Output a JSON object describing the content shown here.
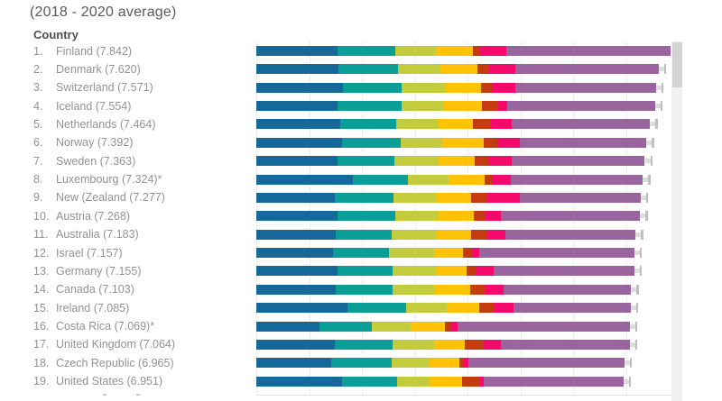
{
  "header": {
    "subtitle": "(2018 - 2020 average)"
  },
  "list": {
    "heading": "Country"
  },
  "colors": {
    "blue": "#16679a",
    "teal": "#0a9e96",
    "olive": "#c3cc3c",
    "yellow": "#fec306",
    "dark_red": "#c43b10",
    "pink": "#f5096b",
    "purple": "#9a659f",
    "whisker": "#bfbfbf",
    "gridline": "#ededed",
    "scrollbar_thumb": "#d2d2d2",
    "scrollbar_track": "#f1f1f1",
    "text_muted": "#929292"
  },
  "chart_data": {
    "type": "bar",
    "orientation": "horizontal",
    "stacked": true,
    "title": "(2018 - 2020 average)",
    "x_axis": {
      "range": [
        0,
        8
      ],
      "tick_interval": 1,
      "gridlines": true,
      "tick_labels_visible": false
    },
    "legend_visible": false,
    "segments": [
      "blue",
      "teal",
      "olive",
      "yellow",
      "dark_red",
      "pink",
      "purple"
    ],
    "note": "segment values estimated from bar lengths, in score units; whisker = confidence interval marker at bar end",
    "countries": [
      {
        "rank": "1.",
        "label": "Finland (7.842)",
        "score": 7.842,
        "values": [
          1.54,
          1.09,
          0.77,
          0.7,
          0.12,
          0.51,
          3.11
        ]
      },
      {
        "rank": "2.",
        "label": "Denmark (7.620)",
        "score": 7.62,
        "values": [
          1.56,
          1.13,
          0.8,
          0.7,
          0.22,
          0.5,
          2.71
        ]
      },
      {
        "rank": "3.",
        "label": "Switzerland (7.571)",
        "score": 7.571,
        "values": [
          1.64,
          1.11,
          0.84,
          0.67,
          0.21,
          0.44,
          2.66
        ]
      },
      {
        "rank": "4.",
        "label": "Iceland (7.554)",
        "score": 7.554,
        "values": [
          1.54,
          1.21,
          0.8,
          0.72,
          0.31,
          0.17,
          2.8
        ]
      },
      {
        "rank": "5.",
        "label": "Netherlands (7.464)",
        "score": 7.464,
        "values": [
          1.59,
          1.06,
          0.8,
          0.65,
          0.34,
          0.39,
          2.63
        ]
      },
      {
        "rank": "6.",
        "label": "Norway (7.392)",
        "score": 7.392,
        "values": [
          1.62,
          1.11,
          0.8,
          0.77,
          0.26,
          0.43,
          2.4
        ]
      },
      {
        "rank": "7.",
        "label": "Sweden (7.363)",
        "score": 7.363,
        "values": [
          1.54,
          1.08,
          0.84,
          0.68,
          0.26,
          0.44,
          2.52
        ]
      },
      {
        "rank": "8.",
        "label": "Luxembourg (7.324)*",
        "score": 7.324,
        "values": [
          1.83,
          1.04,
          0.77,
          0.68,
          0.15,
          0.36,
          2.49
        ]
      },
      {
        "rank": "9.",
        "label": "New (Zealand (7.277)",
        "score": 7.277,
        "values": [
          1.49,
          1.11,
          0.82,
          0.65,
          0.29,
          0.63,
          2.29
        ]
      },
      {
        "rank": "10.",
        "label": "Austria (7.268)",
        "score": 7.268,
        "values": [
          1.54,
          1.09,
          0.82,
          0.67,
          0.22,
          0.29,
          2.64
        ]
      },
      {
        "rank": "11.",
        "label": "Australia (7.183)",
        "score": 7.183,
        "values": [
          1.5,
          1.06,
          0.86,
          0.65,
          0.31,
          0.34,
          2.46
        ]
      },
      {
        "rank": "12.",
        "label": "Israel (7.157)",
        "score": 7.157,
        "values": [
          1.45,
          1.06,
          0.86,
          0.55,
          0.17,
          0.14,
          2.93
        ]
      },
      {
        "rank": "13.",
        "label": "Germany (7.155)",
        "score": 7.155,
        "values": [
          1.54,
          1.04,
          0.84,
          0.56,
          0.17,
          0.34,
          2.67
        ]
      },
      {
        "rank": "14.",
        "label": "Canada (7.103)",
        "score": 7.103,
        "values": [
          1.5,
          1.08,
          0.8,
          0.67,
          0.29,
          0.34,
          2.42
        ]
      },
      {
        "rank": "15.",
        "label": "Ireland (7.085)",
        "score": 7.085,
        "values": [
          1.73,
          1.11,
          0.77,
          0.62,
          0.27,
          0.38,
          2.21
        ]
      },
      {
        "rank": "16.",
        "label": "Costa Rica (7.069)*",
        "score": 7.069,
        "values": [
          1.2,
          0.99,
          0.74,
          0.65,
          0.12,
          0.12,
          3.25
        ]
      },
      {
        "rank": "17.",
        "label": "United Kingdom (7.064)",
        "score": 7.064,
        "values": [
          1.49,
          1.09,
          0.79,
          0.58,
          0.36,
          0.33,
          2.43
        ]
      },
      {
        "rank": "18.",
        "label": "Czech Republic (6.965)",
        "score": 6.965,
        "values": [
          1.42,
          1.15,
          0.72,
          0.56,
          0.07,
          0.09,
          2.96
        ]
      },
      {
        "rank": "19.",
        "label": "United States (6.951)",
        "score": 6.951,
        "values": [
          1.62,
          1.04,
          0.62,
          0.62,
          0.34,
          0.07,
          2.64
        ]
      }
    ]
  },
  "scrollbar": {
    "present": true
  }
}
